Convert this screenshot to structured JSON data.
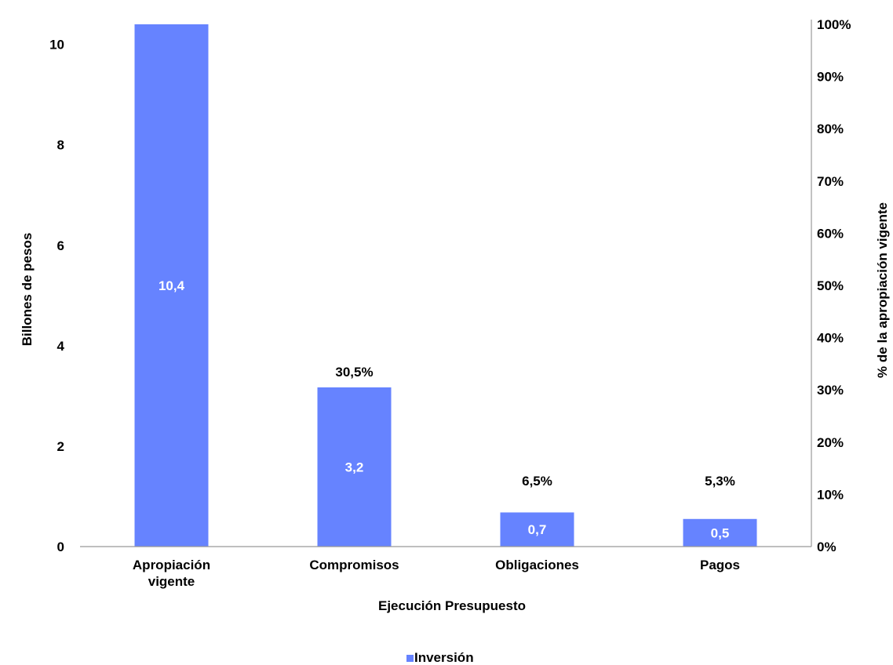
{
  "chart_data": {
    "type": "bar",
    "title": "",
    "xlabel": "Ejecución Presupuesto",
    "ylabel": "Billones de pesos",
    "y2label": "% de la apropiación vigente",
    "categories": [
      "Apropiación\nvigente",
      "Compromisos",
      "Obligaciones",
      "Pagos"
    ],
    "series": [
      {
        "name": "Inversión",
        "values": [
          10.4,
          3.17,
          0.68,
          0.55
        ],
        "value_labels": [
          "10,4",
          "3,2",
          "0,7",
          "0,5"
        ],
        "color": "#6683FF"
      }
    ],
    "percent_labels": [
      "",
      "30,5%",
      "6,5%",
      "5,3%"
    ],
    "ylim": [
      0,
      10.4
    ],
    "yticks": [
      0,
      2,
      4,
      6,
      8,
      10
    ],
    "y2lim": [
      0,
      100
    ],
    "y2ticks": [
      "0%",
      "10%",
      "20%",
      "30%",
      "40%",
      "50%",
      "60%",
      "70%",
      "80%",
      "90%",
      "100%"
    ],
    "grid": false,
    "legend_position": "bottom"
  }
}
